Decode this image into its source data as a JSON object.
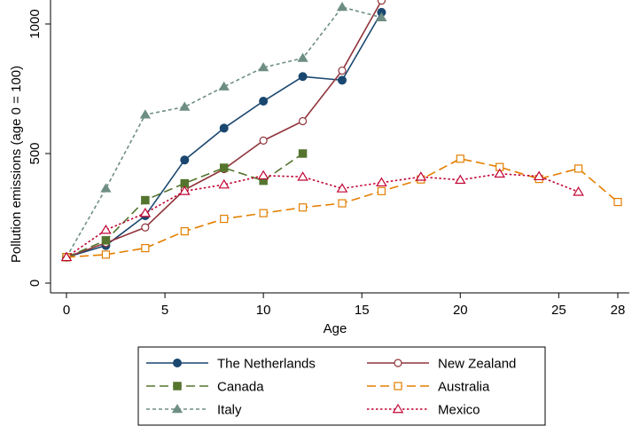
{
  "chart_data": {
    "type": "line",
    "title": "",
    "xlabel": "Age",
    "ylabel": "Pollution emissions (age 0 = 100)",
    "xlim": [
      0,
      28
    ],
    "ylim": [
      0,
      1000
    ],
    "xticks": [
      0,
      5,
      10,
      15,
      20,
      25,
      28
    ],
    "yticks": [
      0,
      500,
      1000
    ],
    "grid": false,
    "legend_position": "bottom",
    "series": [
      {
        "name": "The Netherlands",
        "color": "#1a476f",
        "marker": "filled-circle",
        "dash": "solid",
        "x": [
          0,
          2,
          4,
          6,
          8,
          10,
          12,
          14,
          16
        ],
        "values": [
          100,
          145,
          260,
          475,
          598,
          702,
          797,
          783,
          1045
        ]
      },
      {
        "name": "New Zealand",
        "color": "#90353b",
        "marker": "hollow-circle",
        "dash": "solid",
        "x": [
          0,
          2,
          4,
          6,
          8,
          10,
          12,
          14,
          16
        ],
        "values": [
          100,
          155,
          215,
          360,
          440,
          550,
          625,
          820,
          1090
        ]
      },
      {
        "name": "Canada",
        "color": "#55752f",
        "marker": "filled-square",
        "dash": "long-dash",
        "x": [
          0,
          2,
          4,
          6,
          8,
          10,
          12
        ],
        "values": [
          100,
          165,
          320,
          385,
          445,
          395,
          500
        ]
      },
      {
        "name": "Australia",
        "color": "#e37e00",
        "marker": "hollow-square",
        "dash": "long-dash",
        "x": [
          0,
          2,
          4,
          6,
          8,
          10,
          12,
          14,
          16,
          18,
          20,
          22,
          24,
          26,
          28
        ],
        "values": [
          100,
          110,
          135,
          200,
          248,
          270,
          292,
          308,
          355,
          400,
          480,
          448,
          402,
          442,
          313
        ]
      },
      {
        "name": "Italy",
        "color": "#6e8e84",
        "marker": "filled-triangle",
        "dash": "short-dash",
        "x": [
          0,
          2,
          4,
          6,
          8,
          10,
          12,
          14,
          16
        ],
        "values": [
          100,
          365,
          650,
          680,
          758,
          832,
          868,
          1065,
          1025
        ]
      },
      {
        "name": "Mexico",
        "color": "#c10534",
        "marker": "hollow-triangle",
        "dash": "dotted",
        "x": [
          0,
          2,
          4,
          6,
          8,
          10,
          12,
          14,
          16,
          18,
          20,
          22,
          24,
          26
        ],
        "values": [
          100,
          205,
          270,
          355,
          380,
          415,
          410,
          365,
          388,
          410,
          398,
          422,
          412,
          352
        ]
      }
    ]
  }
}
